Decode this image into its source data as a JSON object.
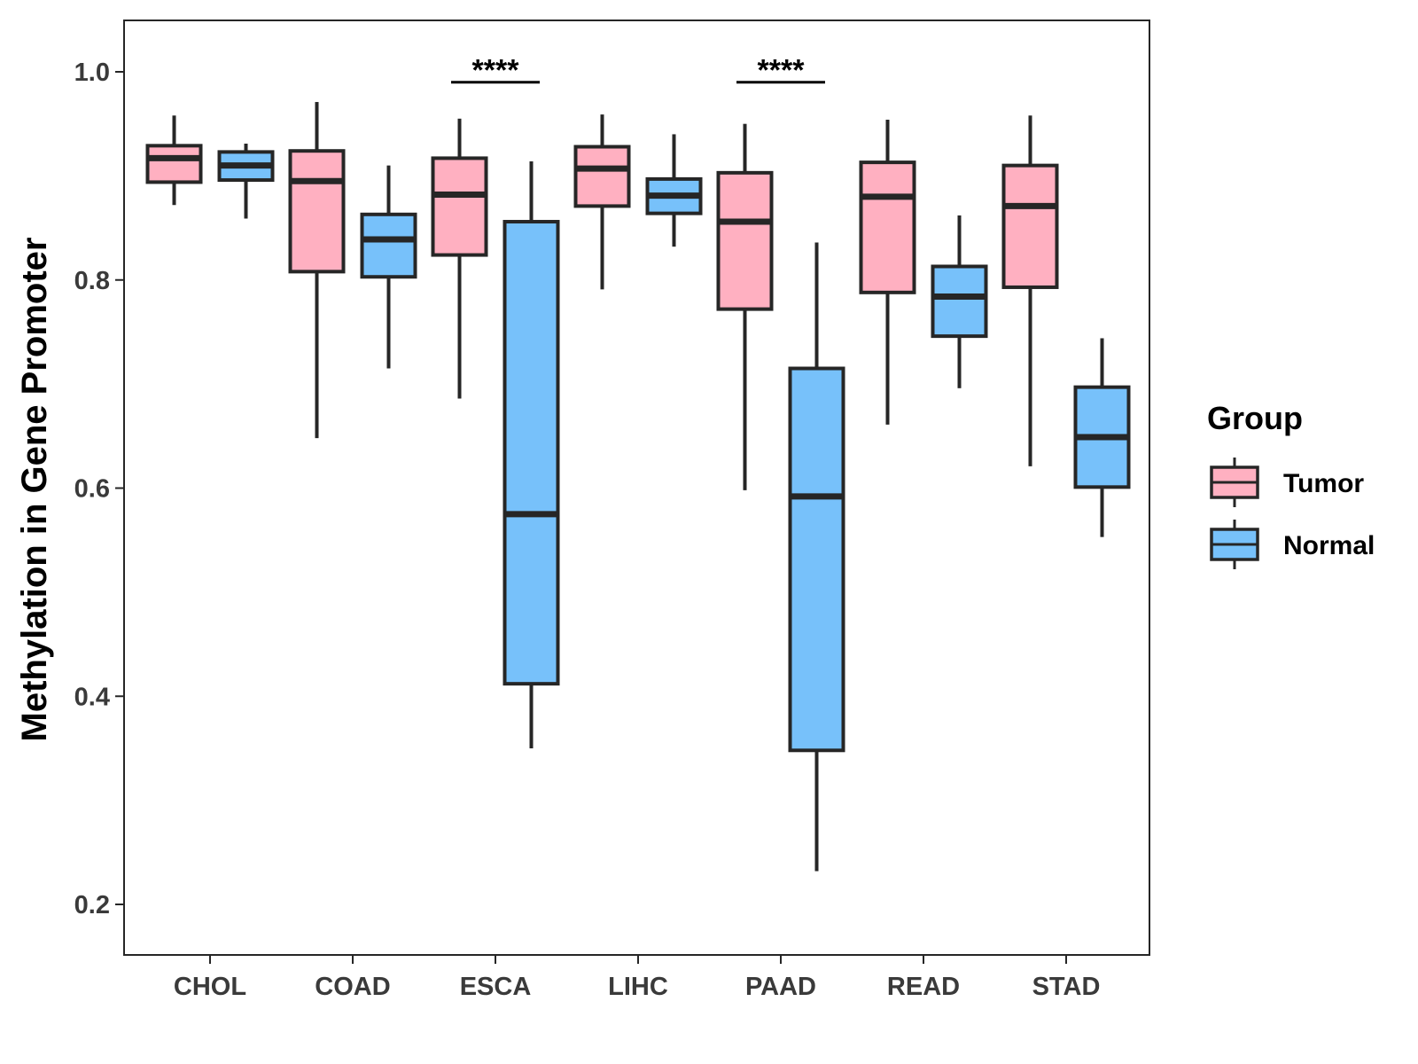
{
  "chart_data": {
    "type": "boxplot",
    "title": "",
    "xlabel": "",
    "ylabel": "Methylation in Gene Promoter",
    "ylim": [
      0.15,
      1.05
    ],
    "yticks": [
      0.2,
      0.4,
      0.6,
      0.8,
      1.0
    ],
    "ytick_labels": [
      "0.2",
      "0.4",
      "0.6",
      "0.8",
      "1.0"
    ],
    "grid": false,
    "categories": [
      "CHOL",
      "COAD",
      "ESCA",
      "LIHC",
      "PAAD",
      "READ",
      "STAD"
    ],
    "legend": {
      "title": "Group",
      "position": "right",
      "entries": [
        {
          "name": "Tumor",
          "color": "#FFB0C1"
        },
        {
          "name": "Normal",
          "color": "#77C1FA"
        }
      ]
    },
    "series": [
      {
        "name": "Tumor",
        "color": "#FFB0C1",
        "boxes": [
          {
            "min": 0.872,
            "q1": 0.894,
            "median": 0.917,
            "q3": 0.929,
            "max": 0.958
          },
          {
            "min": 0.648,
            "q1": 0.808,
            "median": 0.895,
            "q3": 0.924,
            "max": 0.971
          },
          {
            "min": 0.686,
            "q1": 0.824,
            "median": 0.882,
            "q3": 0.917,
            "max": 0.955
          },
          {
            "min": 0.791,
            "q1": 0.871,
            "median": 0.907,
            "q3": 0.928,
            "max": 0.959
          },
          {
            "min": 0.598,
            "q1": 0.772,
            "median": 0.856,
            "q3": 0.903,
            "max": 0.95
          },
          {
            "min": 0.661,
            "q1": 0.788,
            "median": 0.88,
            "q3": 0.913,
            "max": 0.954
          },
          {
            "min": 0.621,
            "q1": 0.793,
            "median": 0.871,
            "q3": 0.91,
            "max": 0.958
          }
        ]
      },
      {
        "name": "Normal",
        "color": "#77C1FA",
        "boxes": [
          {
            "min": 0.859,
            "q1": 0.896,
            "median": 0.91,
            "q3": 0.923,
            "max": 0.931
          },
          {
            "min": 0.715,
            "q1": 0.803,
            "median": 0.839,
            "q3": 0.863,
            "max": 0.91
          },
          {
            "min": 0.35,
            "q1": 0.412,
            "median": 0.575,
            "q3": 0.856,
            "max": 0.914
          },
          {
            "min": 0.832,
            "q1": 0.864,
            "median": 0.881,
            "q3": 0.897,
            "max": 0.94
          },
          {
            "min": 0.232,
            "q1": 0.348,
            "median": 0.592,
            "q3": 0.715,
            "max": 0.836
          },
          {
            "min": 0.696,
            "q1": 0.746,
            "median": 0.784,
            "q3": 0.813,
            "max": 0.862
          },
          {
            "min": 0.553,
            "q1": 0.601,
            "median": 0.649,
            "q3": 0.697,
            "max": 0.744
          }
        ]
      }
    ],
    "annotations": [
      {
        "category": "ESCA",
        "text": "****",
        "y": 0.99
      },
      {
        "category": "PAAD",
        "text": "****",
        "y": 0.99
      }
    ]
  }
}
